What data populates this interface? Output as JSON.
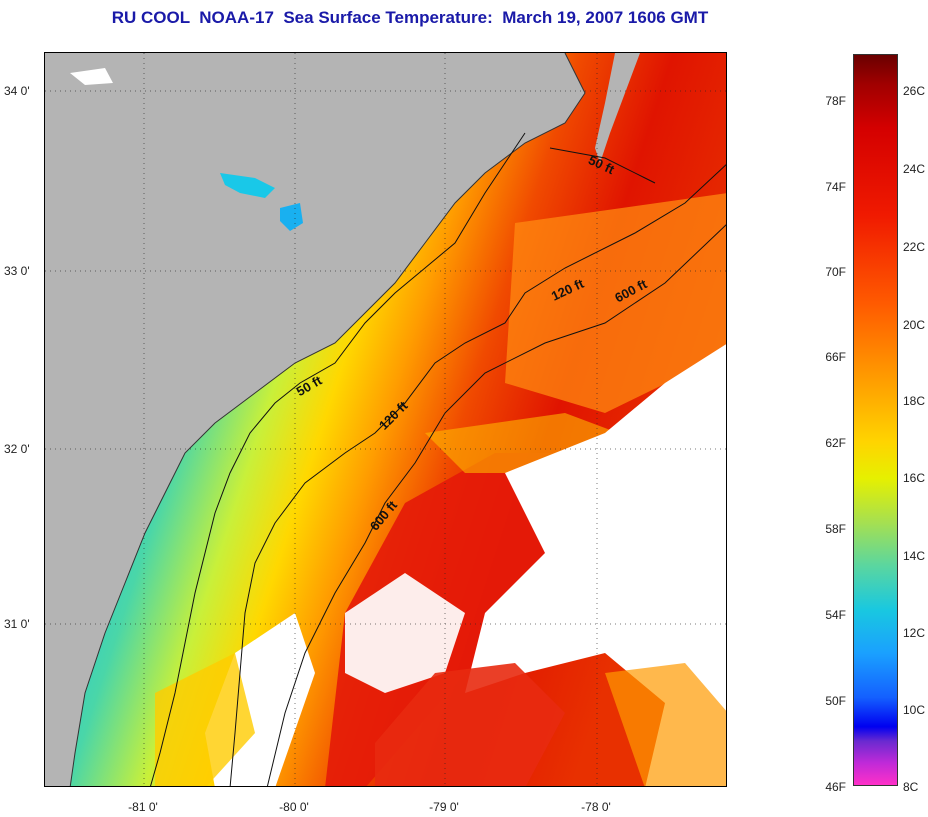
{
  "title": "RU COOL  NOAA-17  Sea Surface Temperature:  March 19, 2007 1606 GMT",
  "axes": {
    "lat_ticks": [
      "34 0'",
      "33 0'",
      "32 0'",
      "31 0'"
    ],
    "lon_ticks": [
      "-81 0'",
      "-80 0'",
      "-79 0'",
      "-78 0'"
    ]
  },
  "contours": {
    "label_50": "50 ft",
    "label_120": "120 ft",
    "label_600": "600 ft"
  },
  "colorbar": {
    "fahrenheit": [
      "78F",
      "74F",
      "70F",
      "66F",
      "62F",
      "58F",
      "54F",
      "50F",
      "46F"
    ],
    "celsius": [
      "26C",
      "24C",
      "22C",
      "20C",
      "18C",
      "16C",
      "14C",
      "12C",
      "10C",
      "8C"
    ]
  },
  "colors": {
    "land": "#b4b4b4",
    "cloud": "#ffffff",
    "title": "#1a1aa8"
  }
}
